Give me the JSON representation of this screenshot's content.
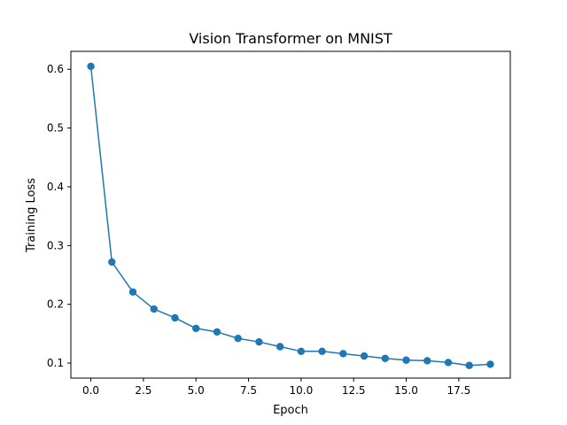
{
  "chart_data": {
    "type": "line",
    "title": "Vision Transformer on MNIST",
    "xlabel": "Epoch",
    "ylabel": "Training Loss",
    "xlim": [
      -0.95,
      19.95
    ],
    "ylim": [
      0.0745,
      0.6305
    ],
    "xticks": [
      0,
      2.5,
      5,
      7.5,
      10,
      12.5,
      15,
      17.5
    ],
    "xtick_labels": [
      "0.0",
      "2.5",
      "5.0",
      "7.5",
      "10.0",
      "12.5",
      "15.0",
      "17.5"
    ],
    "yticks": [
      0.1,
      0.2,
      0.3,
      0.4,
      0.5,
      0.6
    ],
    "ytick_labels": [
      "0.1",
      "0.2",
      "0.3",
      "0.4",
      "0.5",
      "0.6"
    ],
    "grid": false,
    "series": [
      {
        "color": "#1f77b4",
        "marker": "circle",
        "x": [
          0,
          1,
          2,
          3,
          4,
          5,
          6,
          7,
          8,
          9,
          10,
          11,
          12,
          13,
          14,
          15,
          16,
          17,
          18,
          19
        ],
        "y": [
          0.605,
          0.272,
          0.221,
          0.192,
          0.177,
          0.159,
          0.153,
          0.142,
          0.136,
          0.128,
          0.12,
          0.12,
          0.116,
          0.112,
          0.108,
          0.105,
          0.104,
          0.101,
          0.096,
          0.098
        ]
      }
    ]
  }
}
